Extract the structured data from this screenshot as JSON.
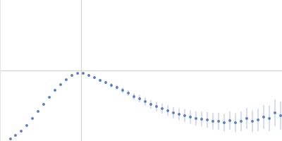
{
  "chart_data": {
    "type": "scatter",
    "color": "#3a66b8",
    "marker": "circle",
    "grid": true,
    "tick_labels": false,
    "xlim": [
      0,
      3.478
    ],
    "xticks": [
      1
    ],
    "ylim": [
      0,
      2
    ],
    "yticks": [
      1
    ],
    "x": [
      0.13,
      0.191,
      0.261,
      0.33,
      0.4,
      0.47,
      0.539,
      0.609,
      0.678,
      0.748,
      0.817,
      0.887,
      0.957,
      1.026,
      1.096,
      1.165,
      1.235,
      1.304,
      1.374,
      1.443,
      1.513,
      1.583,
      1.652,
      1.722,
      1.791,
      1.861,
      1.93,
      2.0,
      2.07,
      2.139,
      2.209,
      2.278,
      2.348,
      2.417,
      2.487,
      2.557,
      2.626,
      2.696,
      2.765,
      2.835,
      2.904,
      2.974,
      3.043,
      3.113,
      3.183,
      3.252,
      3.322,
      3.391,
      3.461
    ],
    "values": [
      0.03,
      0.08,
      0.14,
      0.22,
      0.32,
      0.42,
      0.52,
      0.62,
      0.72,
      0.8,
      0.87,
      0.93,
      0.96,
      0.96,
      0.93,
      0.9,
      0.86,
      0.83,
      0.79,
      0.76,
      0.72,
      0.68,
      0.63,
      0.6,
      0.56,
      0.52,
      0.49,
      0.46,
      0.43,
      0.4,
      0.38,
      0.36,
      0.34,
      0.32,
      0.31,
      0.3,
      0.28,
      0.28,
      0.26,
      0.29,
      0.26,
      0.28,
      0.32,
      0.28,
      0.3,
      0.34,
      0.32,
      0.4,
      0.36
    ],
    "errors": [
      0.004,
      0.004,
      0.005,
      0.005,
      0.005,
      0.006,
      0.006,
      0.007,
      0.008,
      0.009,
      0.01,
      0.012,
      0.014,
      0.016,
      0.018,
      0.02,
      0.023,
      0.026,
      0.03,
      0.034,
      0.038,
      0.042,
      0.046,
      0.05,
      0.055,
      0.06,
      0.065,
      0.07,
      0.075,
      0.08,
      0.085,
      0.09,
      0.095,
      0.1,
      0.105,
      0.11,
      0.115,
      0.12,
      0.125,
      0.13,
      0.135,
      0.14,
      0.15,
      0.155,
      0.16,
      0.17,
      0.18,
      0.19,
      0.2
    ]
  }
}
